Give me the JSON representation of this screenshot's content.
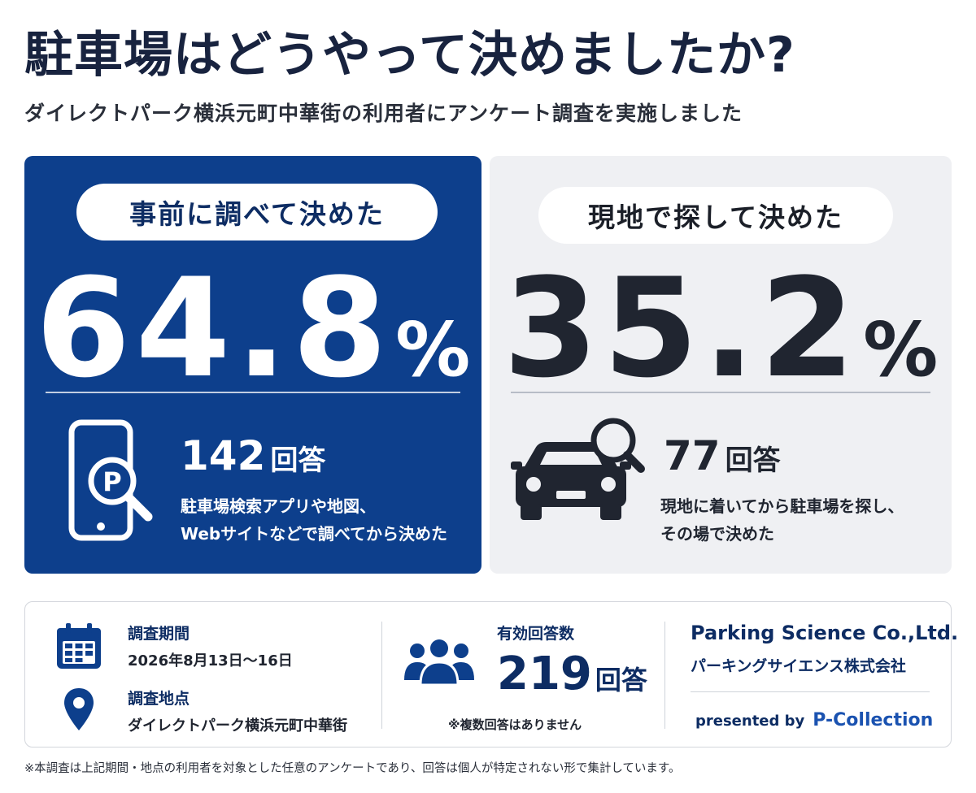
{
  "header": {
    "title": "駐車場はどうやって決めましたか?",
    "subtitle": "ダイレクトパーク横浜元町中華街の利用者にアンケート調査を実施しました"
  },
  "left_panel": {
    "label": "事前に調べて決めた",
    "percent": "64.8",
    "percent_unit": "%",
    "percent_value": 64.8,
    "count": "142",
    "count_unit": "回答",
    "description_line1": "駐車場検索アプリや地図、",
    "description_line2": "Webサイトなどで調べてから決めた",
    "icon": "smartphone-parking-search-icon",
    "color": "#0d3f8c"
  },
  "right_panel": {
    "label": "現地で探して決めた",
    "percent": "35.2",
    "percent_unit": "%",
    "percent_value": 35.2,
    "count": "77",
    "count_unit": "回答",
    "description_line1": "現地に着いてから駐車場を探し、",
    "description_line2": "その場で決めた",
    "icon": "car-search-icon",
    "color": "#eff0f3"
  },
  "survey_info": {
    "period_label": "調査期間",
    "period_value": "2026年8月13日～16日",
    "location_label": "調査地点",
    "location_value": "ダイレクトパーク横浜元町中華街",
    "responses_label": "有効回答数",
    "responses_count": "219",
    "responses_unit": "回答",
    "responses_note": "※複数回答はありません",
    "company_en": "Parking Science Co.,Ltd.",
    "company_jp": "パーキングサイエンス株式会社",
    "presented_by": "presented by",
    "presented_brand": "P-Collection"
  },
  "footnote": "※本調査は上記期間・地点の利用者を対象とした任意のアンケートであり、回答は個人が特定されない形で集計しています。",
  "colors": {
    "navy": "#0d3f8c",
    "dark_text": "#18233f",
    "light_panel": "#eff0f3",
    "accent_blue": "#1a52b0"
  }
}
